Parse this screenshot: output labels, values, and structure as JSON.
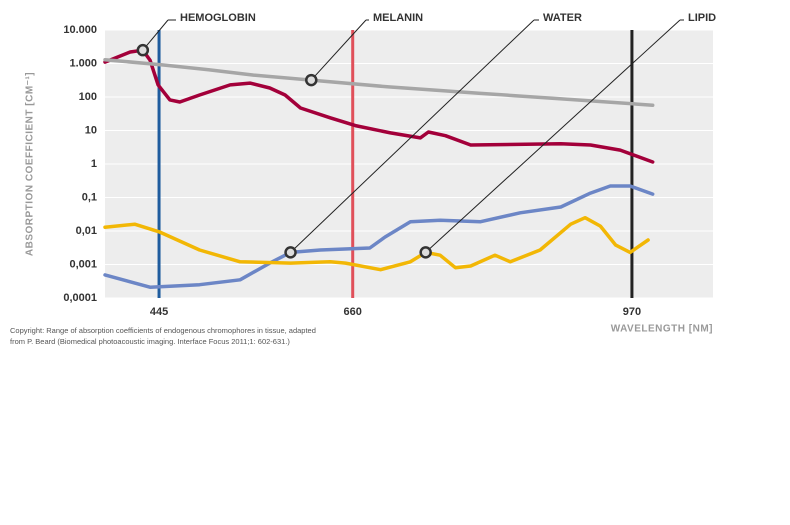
{
  "chart_data": {
    "type": "line",
    "y_label": "ABSORPTION COEFFICIENT [CM⁻¹]",
    "x_label": "WAVELENGTH [NM]",
    "log_y": true,
    "grid": true,
    "xlim": [
      385,
      1060
    ],
    "xticks": [
      445,
      660,
      970
    ],
    "xtick_colors": [
      "#1f5c9e",
      "#e0505a",
      "#222222"
    ],
    "ylim": [
      0.0001,
      10000
    ],
    "yticks": [
      {
        "value": 10000,
        "label": "10.000"
      },
      {
        "value": 1000,
        "label": "1.000"
      },
      100,
      10,
      1,
      {
        "value": 0.1,
        "label": "0,1"
      },
      {
        "value": 0.01,
        "label": "0,01"
      },
      {
        "value": 0.001,
        "label": "0,001"
      },
      {
        "value": 0.0001,
        "label": "0,0001"
      }
    ],
    "series": [
      {
        "name": "HEMOGLOBIN",
        "color": "#a3003a",
        "callout_point": 2,
        "x": [
          385,
          413,
          427,
          435,
          444,
          457,
          468,
          490,
          524,
          546,
          568,
          585,
          602,
          635,
          663,
          702,
          735,
          744,
          763,
          791,
          891,
          924,
          957,
          993
        ],
        "values": [
          1100,
          2200,
          2500,
          1260,
          230,
          82,
          71,
          115,
          230,
          260,
          185,
          115,
          47,
          24,
          14,
          8.5,
          6,
          9,
          7,
          3.7,
          4,
          3.7,
          2.6,
          1.15
        ]
      },
      {
        "name": "MELANIN",
        "color": "#a6a6a6",
        "callout_point": 4,
        "x": [
          385,
          450,
          500,
          550,
          614,
          700,
          800,
          900,
          993
        ],
        "values": [
          1300,
          900,
          650,
          450,
          320,
          200,
          130,
          85,
          57
        ]
      },
      {
        "name": "WATER",
        "color": "#6c86c6",
        "callout_point": 5,
        "x": [
          385,
          435,
          490,
          535,
          568,
          591,
          624,
          679,
          696,
          724,
          757,
          802,
          846,
          891,
          924,
          946,
          968,
          993
        ],
        "values": [
          0.00049,
          0.00021,
          0.00025,
          0.00035,
          0.0011,
          0.0023,
          0.0027,
          0.0031,
          0.0066,
          0.019,
          0.021,
          0.019,
          0.035,
          0.052,
          0.135,
          0.22,
          0.22,
          0.126
        ]
      },
      {
        "name": "LIPID",
        "color": "#f2b705",
        "callout_point": 10,
        "x": [
          385,
          418,
          446,
          490,
          535,
          591,
          635,
          652,
          691,
          724,
          741,
          757,
          774,
          791,
          818,
          835,
          868,
          902,
          918,
          935,
          952,
          968,
          988
        ],
        "values": [
          0.013,
          0.016,
          0.0093,
          0.0027,
          0.0012,
          0.0011,
          0.0012,
          0.0011,
          0.0007,
          0.0012,
          0.0023,
          0.0019,
          0.0008,
          0.0009,
          0.0019,
          0.0012,
          0.0027,
          0.016,
          0.025,
          0.014,
          0.0038,
          0.0023,
          0.0054
        ]
      }
    ],
    "footnote": [
      "Copyright: Range of absorption coefficients of endogenous chromophores in tissue, adapted",
      "from P. Beard (Biomedical photoacoustic imaging. Interface Focus 2011;1: 602-631.)"
    ]
  }
}
